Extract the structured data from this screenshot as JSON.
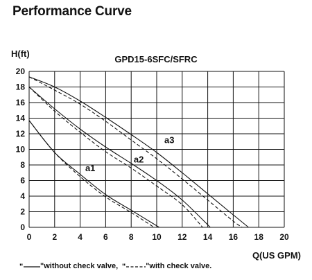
{
  "header": {
    "title": "Performance Curve"
  },
  "chart_data": {
    "type": "line",
    "title": "GPD15-6SFC/SFRC",
    "ylabel": "H(ft)",
    "xlabel": "Q(US GPM)",
    "xlim": [
      0,
      20
    ],
    "ylim": [
      0,
      20
    ],
    "xticks": [
      0,
      2,
      4,
      6,
      8,
      10,
      12,
      14,
      16,
      18,
      20
    ],
    "yticks": [
      0,
      2,
      4,
      6,
      8,
      10,
      12,
      14,
      16,
      18,
      20
    ],
    "grid": true,
    "series": [
      {
        "name": "a1",
        "style": "solid",
        "x": [
          0,
          2,
          4,
          6,
          8,
          10.2
        ],
        "y": [
          13.7,
          9.6,
          6.8,
          4.2,
          2.2,
          0
        ]
      },
      {
        "name": "a1",
        "style": "dashed",
        "x": [
          0,
          2,
          4,
          6,
          8,
          9.8
        ],
        "y": [
          13.7,
          9.6,
          6.5,
          3.9,
          1.9,
          0
        ]
      },
      {
        "name": "a2",
        "style": "solid",
        "x": [
          0,
          2,
          4,
          6,
          8,
          10,
          12,
          14.2
        ],
        "y": [
          18,
          15.2,
          12.6,
          10.3,
          8.2,
          6.0,
          3.5,
          0
        ]
      },
      {
        "name": "a2",
        "style": "dashed",
        "x": [
          0,
          2,
          4,
          6,
          8,
          10,
          12,
          13.6
        ],
        "y": [
          18,
          14.9,
          12.2,
          9.7,
          7.6,
          5.3,
          2.9,
          0
        ]
      },
      {
        "name": "a3",
        "style": "solid",
        "x": [
          0,
          2,
          4,
          6,
          8,
          10,
          12,
          14,
          16,
          17.2
        ],
        "y": [
          19.3,
          18.0,
          16.2,
          14.1,
          11.9,
          9.6,
          7.0,
          4.3,
          1.6,
          0
        ]
      },
      {
        "name": "a3",
        "style": "dashed",
        "x": [
          0,
          2,
          4,
          6,
          8,
          10,
          12,
          14,
          16,
          16.7
        ],
        "y": [
          19.3,
          17.6,
          15.8,
          13.6,
          11.2,
          8.8,
          6.2,
          3.5,
          0.8,
          0
        ]
      }
    ],
    "annotations": [
      {
        "text": "a1",
        "x": 4.4,
        "y": 7.2
      },
      {
        "text": "a2",
        "x": 8.2,
        "y": 8.3
      },
      {
        "text": "a3",
        "x": 10.6,
        "y": 10.8
      }
    ],
    "legend": {
      "solid_text": "\"without check valve,",
      "dashed_text": "\"with check valve."
    }
  }
}
